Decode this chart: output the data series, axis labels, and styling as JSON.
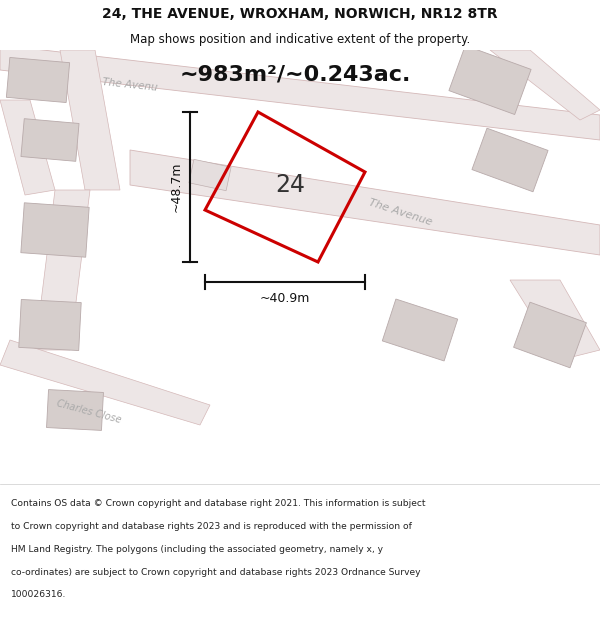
{
  "title_line1": "24, THE AVENUE, WROXHAM, NORWICH, NR12 8TR",
  "title_line2": "Map shows position and indicative extent of the property.",
  "area_text": "~983m²/~0.243ac.",
  "label_number": "24",
  "dim_height": "~48.7m",
  "dim_width": "~40.9m",
  "footer_lines": [
    "Contains OS data © Crown copyright and database right 2021. This information is subject",
    "to Crown copyright and database rights 2023 and is reproduced with the permission of",
    "HM Land Registry. The polygons (including the associated geometry, namely x, y",
    "co-ordinates) are subject to Crown copyright and database rights 2023 Ordnance Survey",
    "100026316."
  ],
  "map_bg": "#f7f2f2",
  "plot_color": "#cc0000",
  "road_fill": "#ede6e6",
  "road_edge": "#d4b8b8",
  "building_fill": "#d6cecc",
  "building_edge": "#b8aaaa",
  "road_label_color": "#aaaaaa",
  "dim_color": "#111111",
  "title_color": "#111111",
  "footer_color": "#222222",
  "area_text_color": "#111111"
}
